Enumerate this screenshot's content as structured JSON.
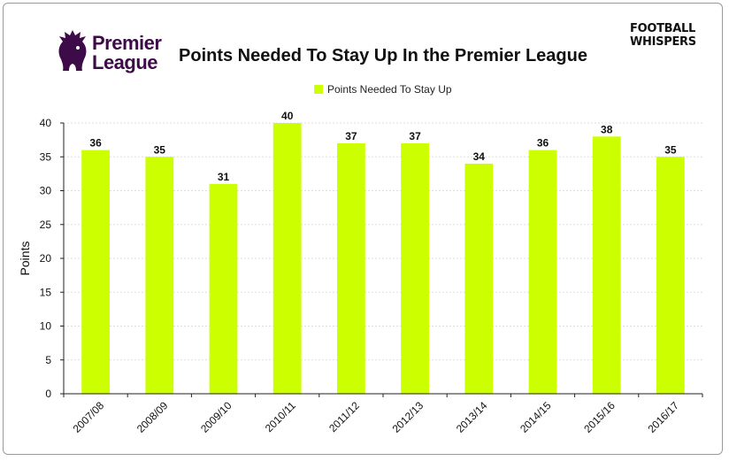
{
  "branding": {
    "league_logo_line1": "Premier",
    "league_logo_line2": "League",
    "site_logo_line1": "FOOTBALL",
    "site_logo_line2": "WHISPERS"
  },
  "colors": {
    "bar": "#ccff00",
    "grid": "#dddddd",
    "logo_purple": "#3d0b47"
  },
  "chart_data": {
    "type": "bar",
    "title": "Points Needed To Stay Up In the Premier League",
    "ylabel": "Points",
    "xlabel": "",
    "ylim": [
      0,
      40
    ],
    "yticks": [
      0,
      5,
      10,
      15,
      20,
      25,
      30,
      35,
      40
    ],
    "grid": true,
    "legend_position": "top-center",
    "categories": [
      "2007/08",
      "2008/09",
      "2009/10",
      "2010/11",
      "2011/12",
      "2012/13",
      "2013/14",
      "2014/15",
      "2015/16",
      "2016/17"
    ],
    "series": [
      {
        "name": "Points Needed To Stay Up",
        "values": [
          36,
          35,
          31,
          40,
          37,
          37,
          34,
          36,
          38,
          35
        ]
      }
    ]
  }
}
